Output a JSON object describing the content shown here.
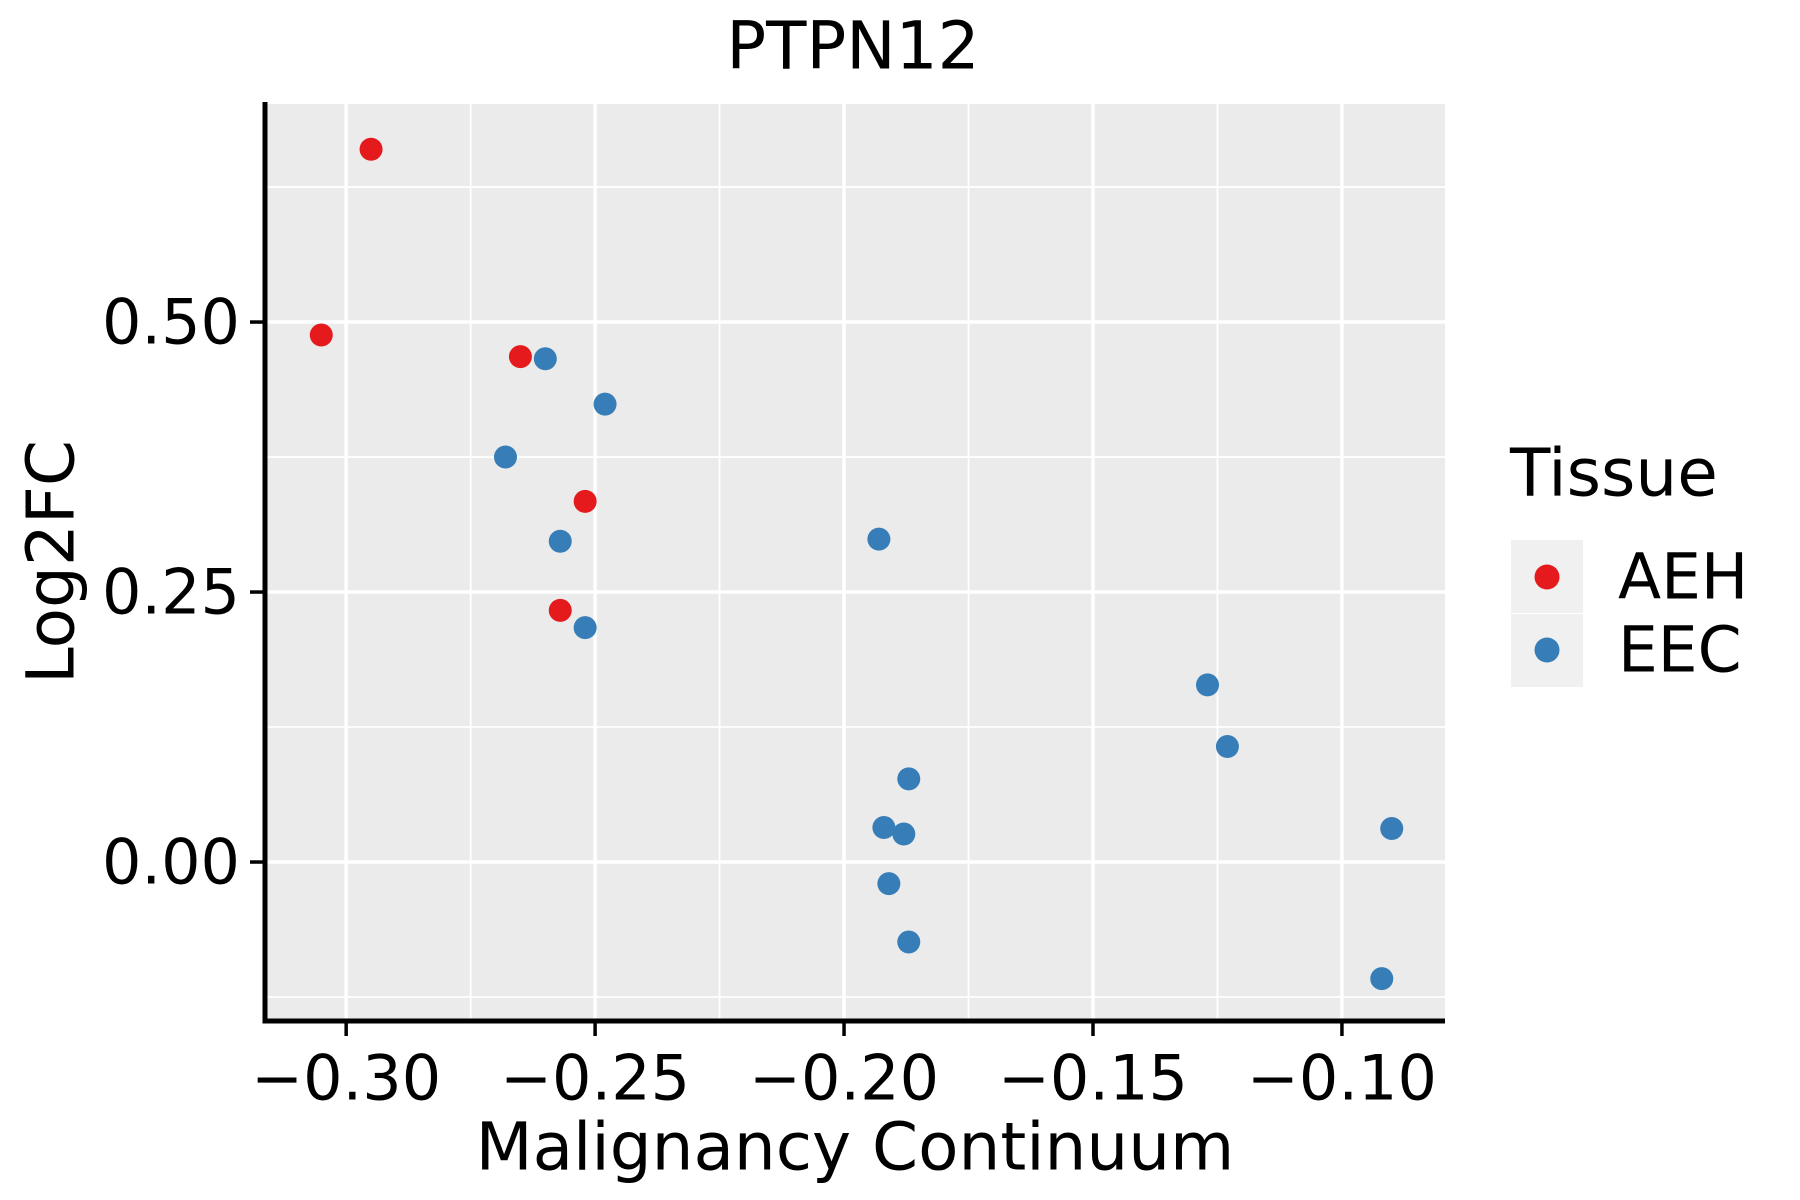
{
  "title": "PTPN12",
  "chart_data": {
    "type": "scatter",
    "title": "PTPN12",
    "xlabel": "Malignancy Continuum",
    "ylabel": "Log2FC",
    "xlim": [
      -0.3163,
      -0.0793
    ],
    "ylim": [
      -0.1472,
      0.7019
    ],
    "x_major_ticks": [
      {
        "v": -0.3,
        "label": "−0.30"
      },
      {
        "v": -0.25,
        "label": "−0.25"
      },
      {
        "v": -0.2,
        "label": "−0.20"
      },
      {
        "v": -0.15,
        "label": "−0.15"
      },
      {
        "v": -0.1,
        "label": "−0.10"
      }
    ],
    "x_minor_ticks": [
      -0.275,
      -0.225,
      -0.175,
      -0.125
    ],
    "y_major_ticks": [
      {
        "v": 0.0,
        "label": "0.00"
      },
      {
        "v": 0.25,
        "label": "0.25"
      },
      {
        "v": 0.5,
        "label": "0.50"
      }
    ],
    "y_minor_ticks": [
      -0.125,
      0.125,
      0.375,
      0.625
    ],
    "panel_bg": "#EBEBEB",
    "grid": {
      "on": true,
      "major_color": "#FFFFFF",
      "minor_color": "#FFFFFF"
    },
    "axis_color": "#000000",
    "point_radius": 11.5,
    "legend_position": "right",
    "series": [
      {
        "name": "AEH",
        "color": "#E41A1C",
        "points": [
          [
            -0.295,
            0.66
          ],
          [
            -0.305,
            0.488
          ],
          [
            -0.265,
            0.468
          ],
          [
            -0.252,
            0.334
          ],
          [
            -0.257,
            0.233
          ]
        ]
      },
      {
        "name": "EEC",
        "color": "#377EB8",
        "points": [
          [
            -0.26,
            0.466
          ],
          [
            -0.248,
            0.424
          ],
          [
            -0.268,
            0.375
          ],
          [
            -0.257,
            0.297
          ],
          [
            -0.252,
            0.217
          ],
          [
            -0.193,
            0.299
          ],
          [
            -0.187,
            0.077
          ],
          [
            -0.192,
            0.032
          ],
          [
            -0.188,
            0.026
          ],
          [
            -0.191,
            -0.02
          ],
          [
            -0.187,
            -0.074
          ],
          [
            -0.127,
            0.164
          ],
          [
            -0.123,
            0.107
          ],
          [
            -0.09,
            0.031
          ],
          [
            -0.092,
            -0.108
          ]
        ]
      }
    ]
  },
  "legend": {
    "title": "Tissue",
    "key_bg": "#F0F0F0",
    "items": [
      {
        "label": "AEH",
        "color": "#E41A1C"
      },
      {
        "label": "EEC",
        "color": "#377EB8"
      }
    ]
  }
}
